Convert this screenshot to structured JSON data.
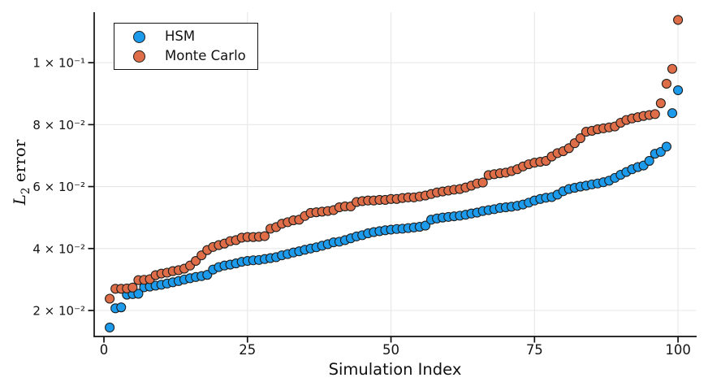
{
  "chart_data": {
    "type": "scatter",
    "title": "",
    "xlabel": "Simulation Index",
    "ylabel": "L₂ error",
    "ylabel_parts": {
      "variable": "L",
      "subscript": "2",
      "rest": " error"
    },
    "x_description": "Simulation index, integers 1 to 100; each series independently sorted ascending by error",
    "x_range": [
      1,
      100
    ],
    "x_step": 1,
    "xlim": [
      -1.7,
      103.1
    ],
    "ylim": [
      0.0116,
      0.1163
    ],
    "y_scale": "linear, tick labels in scientific notation",
    "grid": true,
    "legend": {
      "position": "top-left",
      "entries": [
        "HSM",
        "Monte Carlo"
      ]
    },
    "x_ticks": [
      {
        "value": 0,
        "label": "0",
        "grid": false
      },
      {
        "value": 25,
        "label": "25",
        "grid": true
      },
      {
        "value": 50,
        "label": "50",
        "grid": true
      },
      {
        "value": 75,
        "label": "75",
        "grid": true
      },
      {
        "value": 100,
        "label": "100",
        "grid": true
      }
    ],
    "y_ticks": [
      {
        "value": 0.02,
        "label": "2 × 10⁻²"
      },
      {
        "value": 0.04,
        "label": "4 × 10⁻²"
      },
      {
        "value": 0.06,
        "label": "6 × 10⁻²"
      },
      {
        "value": 0.08,
        "label": "8 × 10⁻²"
      },
      {
        "value": 0.1,
        "label": "1 × 10⁻¹"
      }
    ],
    "style": {
      "marker_shape": "circle",
      "marker_diameter_px": 11,
      "marker_stroke": "#1f1f1f",
      "grid_color": "#e7e7e7",
      "spine_color": "#101010",
      "text_color": "#141414",
      "background": "#ffffff"
    },
    "series": [
      {
        "name": "HSM",
        "color": "#1c9aec",
        "values": [
          0.0145,
          0.0207,
          0.021,
          0.0251,
          0.0253,
          0.0254,
          0.0275,
          0.0277,
          0.028,
          0.0283,
          0.0287,
          0.0291,
          0.0295,
          0.03,
          0.0304,
          0.0308,
          0.0311,
          0.0315,
          0.0332,
          0.034,
          0.0345,
          0.0348,
          0.0352,
          0.0357,
          0.036,
          0.0362,
          0.0363,
          0.0366,
          0.0369,
          0.0372,
          0.0378,
          0.0382,
          0.0387,
          0.0391,
          0.0396,
          0.04,
          0.0404,
          0.0409,
          0.0414,
          0.042,
          0.0422,
          0.0427,
          0.0433,
          0.0439,
          0.0443,
          0.0449,
          0.0453,
          0.0456,
          0.0459,
          0.0461,
          0.0463,
          0.0464,
          0.0466,
          0.0468,
          0.047,
          0.0474,
          0.0493,
          0.0497,
          0.05,
          0.0502,
          0.0504,
          0.0506,
          0.0509,
          0.0513,
          0.0516,
          0.0521,
          0.0524,
          0.0527,
          0.0531,
          0.0533,
          0.0535,
          0.0538,
          0.0542,
          0.0548,
          0.0555,
          0.056,
          0.0564,
          0.0566,
          0.0574,
          0.0585,
          0.0592,
          0.0596,
          0.06,
          0.0603,
          0.0607,
          0.061,
          0.0614,
          0.0619,
          0.0628,
          0.0638,
          0.0647,
          0.0656,
          0.0663,
          0.0668,
          0.0683,
          0.0706,
          0.0712,
          0.0729,
          0.0837,
          0.0911
        ]
      },
      {
        "name": "Monte Carlo",
        "color": "#df6e48",
        "values": [
          0.0238,
          0.027,
          0.027,
          0.0271,
          0.0274,
          0.0298,
          0.0299,
          0.0301,
          0.0314,
          0.0319,
          0.0322,
          0.0327,
          0.033,
          0.0335,
          0.0345,
          0.036,
          0.0378,
          0.0395,
          0.0405,
          0.0411,
          0.0416,
          0.0424,
          0.0427,
          0.0435,
          0.0437,
          0.0437,
          0.0438,
          0.044,
          0.0464,
          0.0469,
          0.048,
          0.0485,
          0.0491,
          0.0493,
          0.0505,
          0.0515,
          0.0517,
          0.0519,
          0.0521,
          0.0524,
          0.0533,
          0.0536,
          0.0536,
          0.055,
          0.0553,
          0.0555,
          0.0555,
          0.0557,
          0.0557,
          0.056,
          0.056,
          0.0563,
          0.0565,
          0.0565,
          0.0568,
          0.0571,
          0.0576,
          0.0581,
          0.0584,
          0.0587,
          0.059,
          0.0592,
          0.0597,
          0.0603,
          0.061,
          0.0613,
          0.0637,
          0.064,
          0.0643,
          0.0645,
          0.065,
          0.0656,
          0.0665,
          0.0672,
          0.0677,
          0.068,
          0.0683,
          0.0697,
          0.0708,
          0.0714,
          0.0724,
          0.074,
          0.0756,
          0.0777,
          0.078,
          0.0785,
          0.0788,
          0.0791,
          0.0794,
          0.0806,
          0.0815,
          0.082,
          0.0824,
          0.0828,
          0.0831,
          0.0834,
          0.0869,
          0.0932,
          0.098,
          0.1138
        ]
      }
    ]
  }
}
